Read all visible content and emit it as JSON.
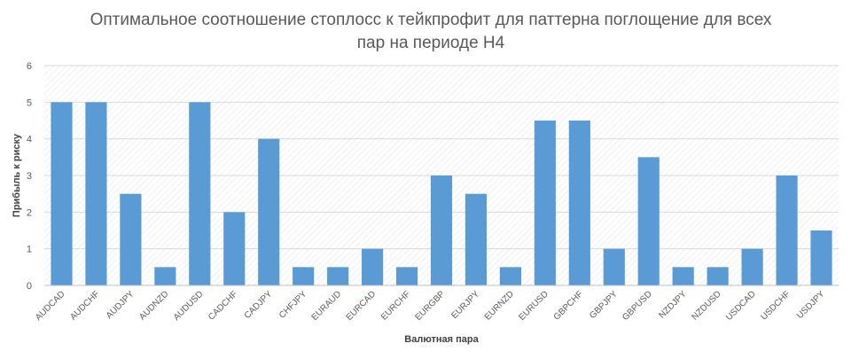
{
  "chart_data": {
    "type": "bar",
    "title_lines": [
      "Оптимальное соотношение стоплосс к тейкпрофит для паттерна поглощение для всех",
      "пар на периоде Н4"
    ],
    "xlabel": "Валютная пара",
    "ylabel": "Прибыль к риску",
    "ylim": [
      0,
      6
    ],
    "yticks": [
      "0",
      "1",
      "2",
      "3",
      "4",
      "5",
      "6"
    ],
    "grid": true,
    "legend": "none",
    "bar_color": "#5B9BD5",
    "categories": [
      "AUDCAD",
      "AUDCHF",
      "AUDJPY",
      "AUDNZD",
      "AUDUSD",
      "CADCHF",
      "CADJPY",
      "CHFJPY",
      "EURAUD",
      "EURCAD",
      "EURCHF",
      "EURGBP",
      "EURJPY",
      "EURNZD",
      "EURUSD",
      "GBPCHF",
      "GBPJPY",
      "GBPUSD",
      "NZDJPY",
      "NZDUSD",
      "USDCAD",
      "USDCHF",
      "USDJPY"
    ],
    "values": [
      5,
      5,
      2.5,
      0.5,
      5,
      2,
      4,
      0.5,
      0.5,
      1,
      0.5,
      3,
      2.5,
      0.5,
      4.5,
      4.5,
      1,
      3.5,
      0.5,
      0.5,
      1,
      3,
      1.5
    ]
  }
}
